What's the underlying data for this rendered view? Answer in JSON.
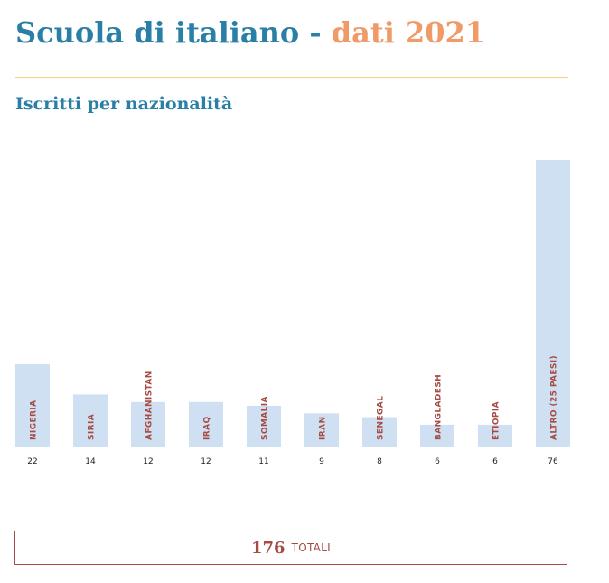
{
  "header": {
    "title_main": "Scuola di italiano",
    "title_sep": " - ",
    "title_accent": "dati 2021",
    "subtitle": "Iscritti per nazionalità"
  },
  "colors": {
    "title": "#2a7fa6",
    "accent": "#ef9a67",
    "bar": "#cfe0f2",
    "label": "#a64b44",
    "value": "#222222",
    "divider": "#f2d27a"
  },
  "chart_data": {
    "type": "bar",
    "title": "Iscritti per nazionalità",
    "categories": [
      "NIGERIA",
      "SIRIA",
      "AFGHANISTAN",
      "IRAQ",
      "SOMALIA",
      "IRAN",
      "SENEGAL",
      "BANGLADESH",
      "ETIOPIA",
      "ALTRO (25 PAESI)"
    ],
    "values": [
      22,
      14,
      12,
      12,
      11,
      9,
      8,
      6,
      6,
      76
    ],
    "ylim": [
      0,
      76
    ],
    "grid": false,
    "legend": "none"
  },
  "total": {
    "value": "176",
    "label": "TOTALI"
  }
}
